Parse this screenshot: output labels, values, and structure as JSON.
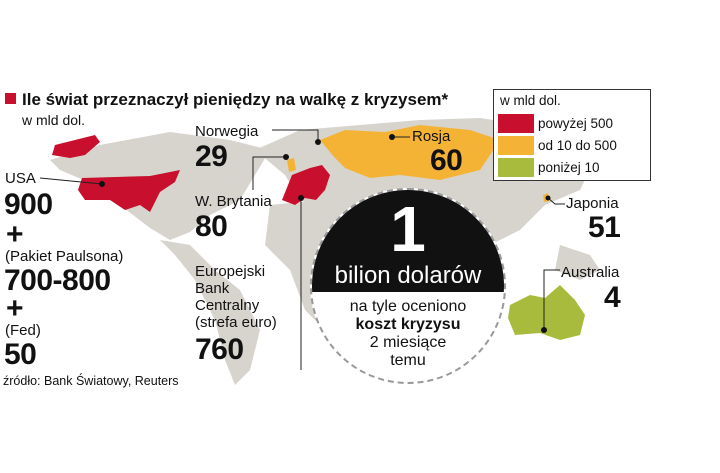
{
  "title": "Ile świat przeznaczył pieniędzy na walkę z kryzysem*",
  "subtitle": "w mld dol.",
  "colors": {
    "above_500": "#c8102e",
    "from_10_to_500": "#f5b335",
    "below_10": "#a9bb3c",
    "land": "#d7d4ce"
  },
  "legend": {
    "title": "w mld dol.",
    "items": [
      {
        "label": "powyżej 500",
        "color": "#c8102e"
      },
      {
        "label": "od 10 do 500",
        "color": "#f5b335"
      },
      {
        "label": "poniżej 10",
        "color": "#a9bb3c"
      }
    ]
  },
  "countries": {
    "usa": {
      "name": "USA",
      "value": "900",
      "plus1": "+",
      "note1": "(Pakiet Paulsona)",
      "value2": "700-800",
      "plus2": "+",
      "note2": "(Fed)",
      "value3": "50"
    },
    "norway": {
      "name": "Norwegia",
      "value": "29"
    },
    "russia": {
      "name": "Rosja",
      "value": "60"
    },
    "uk": {
      "name": "W. Brytania",
      "value": "80"
    },
    "ecb": {
      "name_lines": [
        "Europejski",
        "Bank",
        "Centralny",
        "(strefa euro)"
      ],
      "value": "760"
    },
    "japan": {
      "name": "Japonia",
      "value": "51"
    },
    "australia": {
      "name": "Australia",
      "value": "4"
    }
  },
  "circle": {
    "big": "1",
    "headline": "bilion dolarów",
    "line1": "na tyle oceniono",
    "line2": "koszt kryzysu",
    "line3": "2 miesiące",
    "line4": "temu"
  },
  "source": "źródło: Bank Światowy, Reuters"
}
